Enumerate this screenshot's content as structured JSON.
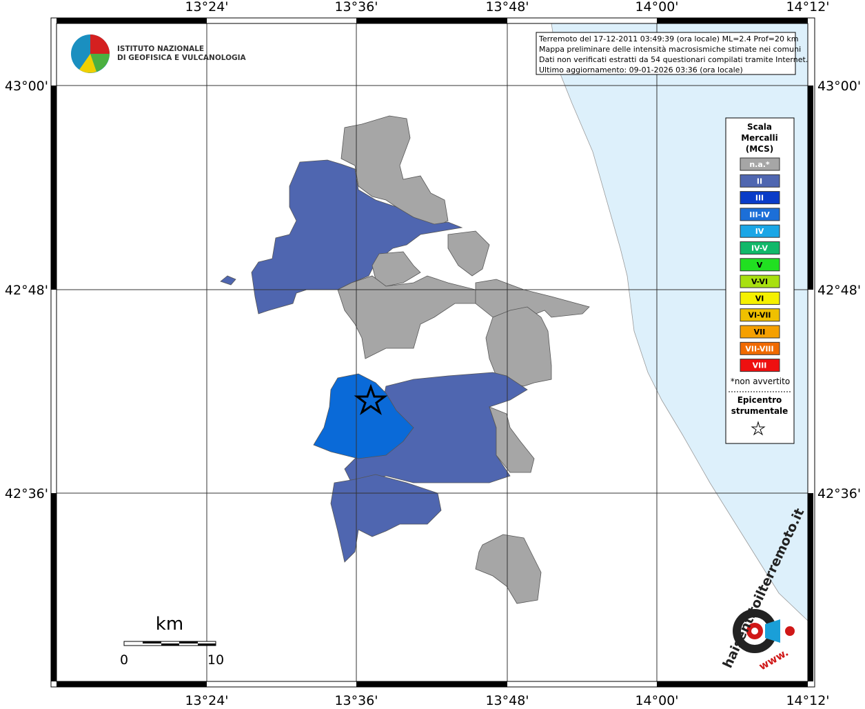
{
  "map": {
    "lon_labels": [
      "13°24'",
      "13°36'",
      "13°48'",
      "14°00'",
      "14°12'"
    ],
    "lat_labels": [
      "43°00'",
      "42°48'",
      "42°36'"
    ],
    "info": [
      "Terremoto del 17-12-2011 03:49:39 (ora locale) ML=2.4 Prof=20 km",
      "Mappa preliminare delle intensità macrosismiche stimate nei comuni",
      "Dati non verificati estratti da 54 questionari compilati tramite Internet.",
      "Ultimo aggiornamento: 09-01-2026 03:36 (ora locale)"
    ],
    "logo": [
      "ISTITUTO NAZIONALE",
      "DI GEOFISICA E VULCANOLOGIA"
    ],
    "legend": {
      "title": [
        "Scala",
        "Mercalli",
        "(MCS)"
      ],
      "items": [
        {
          "label": "n.a.*",
          "color": "#a6a6a6"
        },
        {
          "label": "II",
          "color": "#4f66b0"
        },
        {
          "label": "III",
          "color": "#0a3cc8"
        },
        {
          "label": "III-IV",
          "color": "#1c6fd8"
        },
        {
          "label": "IV",
          "color": "#1aa6e6"
        },
        {
          "label": "IV-V",
          "color": "#12b86a"
        },
        {
          "label": "V",
          "color": "#21e021"
        },
        {
          "label": "V-VI",
          "color": "#a8e010"
        },
        {
          "label": "VI",
          "color": "#f5f000"
        },
        {
          "label": "VI-VII",
          "color": "#f0c000"
        },
        {
          "label": "VII",
          "color": "#f5a000"
        },
        {
          "label": "VII-VIII",
          "color": "#f06a00"
        },
        {
          "label": "VIII",
          "color": "#ee1010"
        }
      ],
      "note": "*non avvertito",
      "epicenter": [
        "Epicentro",
        "strumentale"
      ]
    },
    "scale": {
      "unit": "km",
      "min": "0",
      "max": "10"
    },
    "badge": [
      "haisentitoilterremoto.it",
      "www."
    ]
  }
}
